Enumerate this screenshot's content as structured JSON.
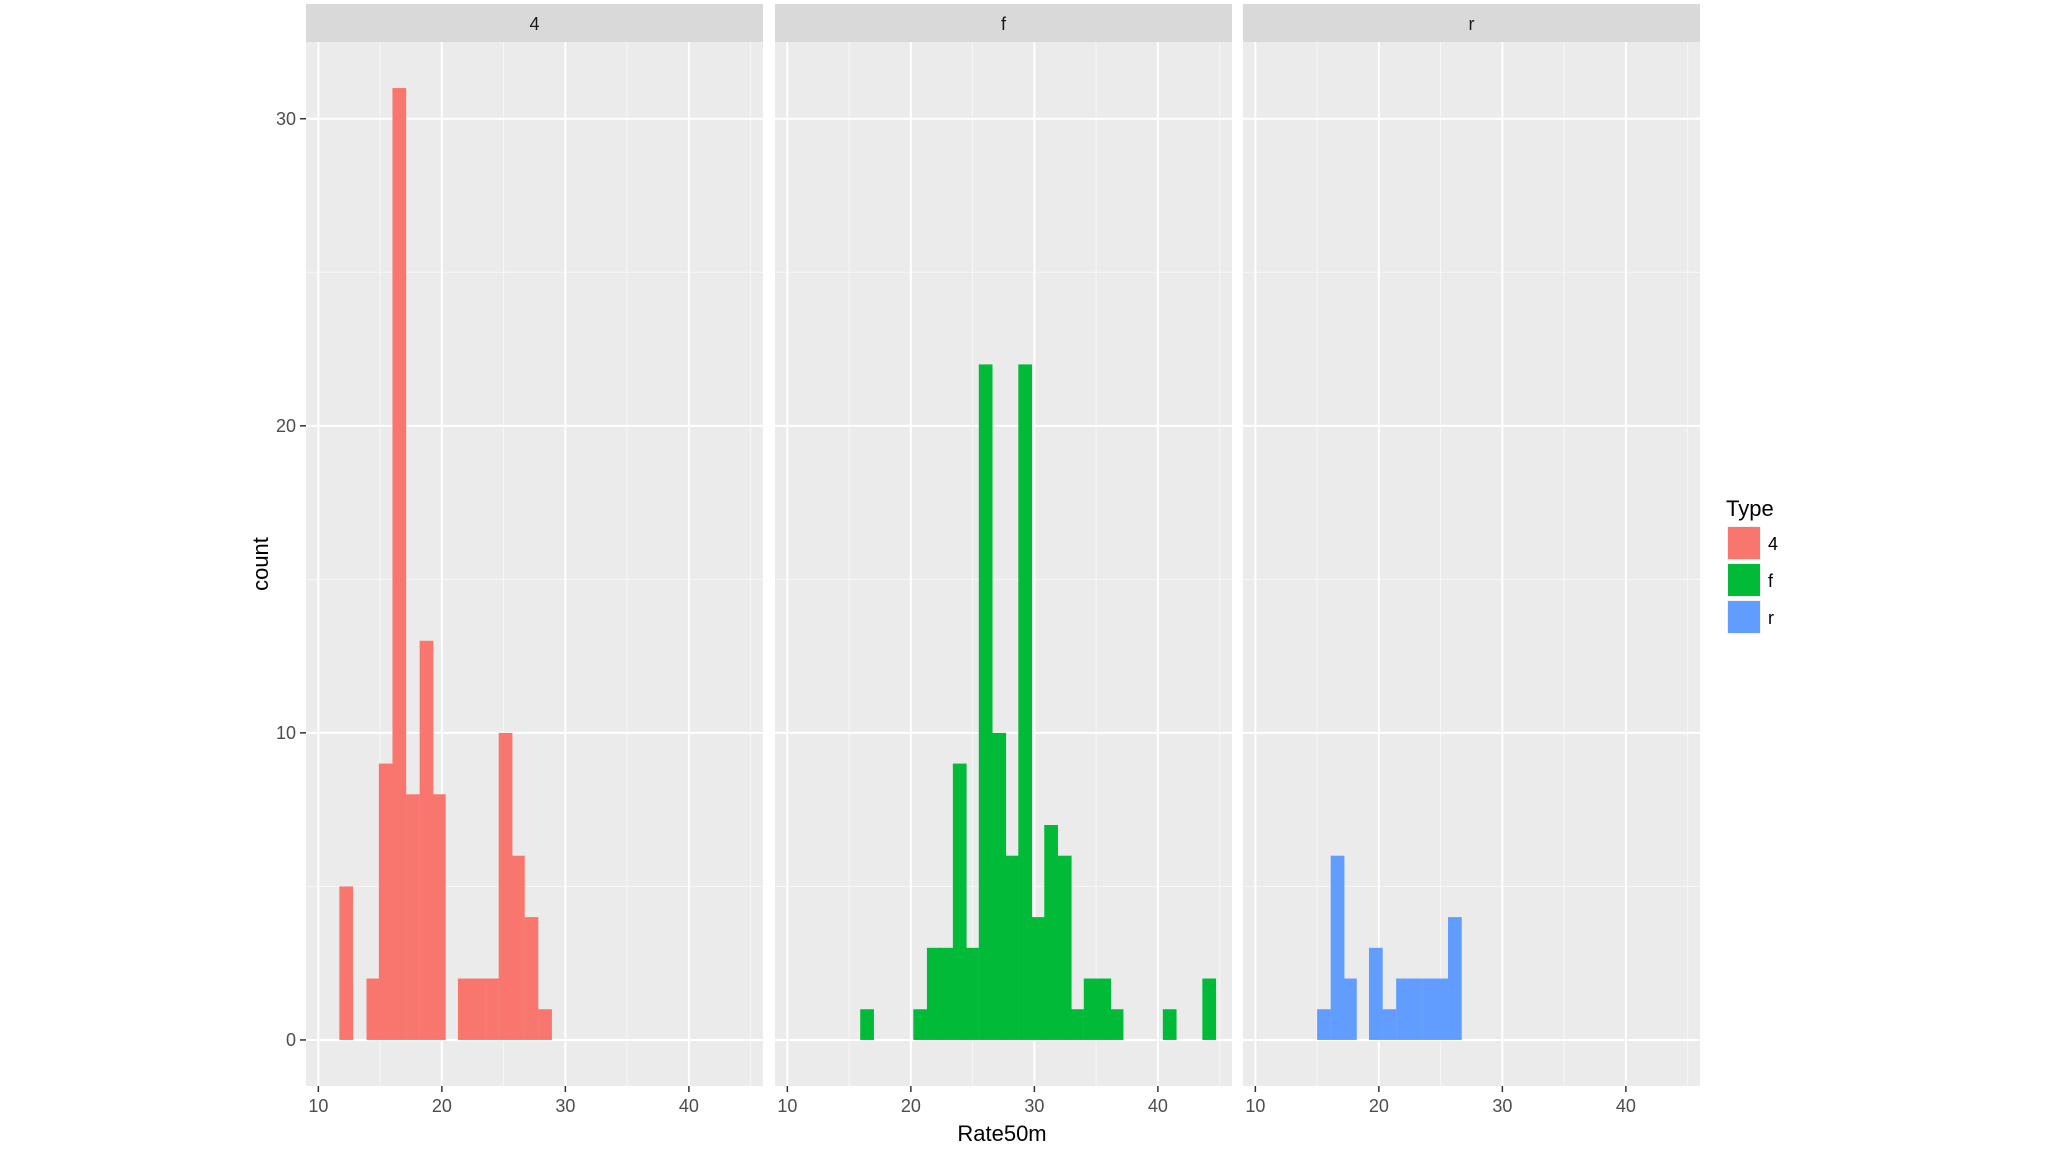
{
  "chart_data": {
    "type": "bar",
    "subtype": "faceted-histogram",
    "xlabel": "Rate50m",
    "ylabel": "count",
    "xlim": [
      9,
      46
    ],
    "ylim": [
      -1.5,
      32.5
    ],
    "x_ticks": [
      10,
      20,
      30,
      40
    ],
    "y_ticks": [
      0,
      10,
      20,
      30
    ],
    "bin_width": 1.07,
    "grid": true,
    "legend": {
      "title": "Type",
      "position": "right",
      "items": [
        {
          "label": "4",
          "color": "#F8766D"
        },
        {
          "label": "f",
          "color": "#00BA38"
        },
        {
          "label": "r",
          "color": "#619CFF"
        }
      ]
    },
    "facets": [
      {
        "strip": "4",
        "color": "#F8766D",
        "bins": [
          {
            "x_start": 11.7,
            "count": 5
          },
          {
            "x_start": 13.9,
            "count": 2
          },
          {
            "x_start": 14.9,
            "count": 9
          },
          {
            "x_start": 16.0,
            "count": 31
          },
          {
            "x_start": 17.1,
            "count": 8
          },
          {
            "x_start": 18.2,
            "count": 13
          },
          {
            "x_start": 19.2,
            "count": 8
          },
          {
            "x_start": 21.3,
            "count": 2
          },
          {
            "x_start": 22.4,
            "count": 2
          },
          {
            "x_start": 23.5,
            "count": 2
          },
          {
            "x_start": 24.6,
            "count": 10
          },
          {
            "x_start": 25.6,
            "count": 6
          },
          {
            "x_start": 26.7,
            "count": 4
          },
          {
            "x_start": 27.8,
            "count": 1
          }
        ]
      },
      {
        "strip": "f",
        "color": "#00BA38",
        "bins": [
          {
            "x_start": 15.9,
            "count": 1
          },
          {
            "x_start": 20.2,
            "count": 1
          },
          {
            "x_start": 21.3,
            "count": 3
          },
          {
            "x_start": 22.3,
            "count": 3
          },
          {
            "x_start": 23.4,
            "count": 9
          },
          {
            "x_start": 24.4,
            "count": 3
          },
          {
            "x_start": 25.5,
            "count": 22
          },
          {
            "x_start": 26.6,
            "count": 10
          },
          {
            "x_start": 27.6,
            "count": 6
          },
          {
            "x_start": 28.7,
            "count": 22
          },
          {
            "x_start": 29.8,
            "count": 4
          },
          {
            "x_start": 30.8,
            "count": 7
          },
          {
            "x_start": 31.9,
            "count": 6
          },
          {
            "x_start": 32.9,
            "count": 1
          },
          {
            "x_start": 34.0,
            "count": 2
          },
          {
            "x_start": 35.1,
            "count": 2
          },
          {
            "x_start": 36.1,
            "count": 1
          },
          {
            "x_start": 40.4,
            "count": 1
          },
          {
            "x_start": 43.6,
            "count": 2
          }
        ]
      },
      {
        "strip": "r",
        "color": "#619CFF",
        "bins": [
          {
            "x_start": 15.0,
            "count": 1
          },
          {
            "x_start": 16.1,
            "count": 6
          },
          {
            "x_start": 17.1,
            "count": 2
          },
          {
            "x_start": 19.2,
            "count": 3
          },
          {
            "x_start": 20.3,
            "count": 1
          },
          {
            "x_start": 21.4,
            "count": 2
          },
          {
            "x_start": 22.4,
            "count": 2
          },
          {
            "x_start": 23.5,
            "count": 2
          },
          {
            "x_start": 24.5,
            "count": 2
          },
          {
            "x_start": 25.6,
            "count": 4
          }
        ]
      }
    ]
  }
}
